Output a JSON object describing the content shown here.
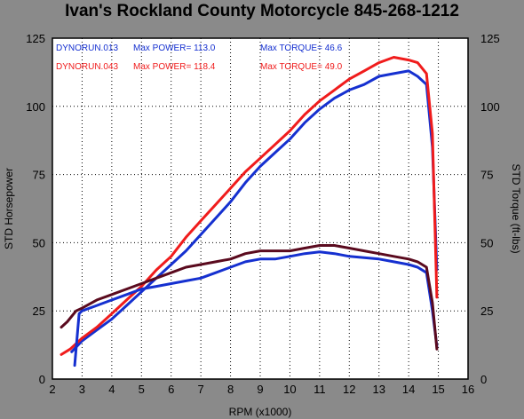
{
  "chart_data": {
    "type": "line",
    "title": "Ivan's Rockland County Motorcycle  845-268-1212",
    "xlabel": "RPM (x1000)",
    "ylabel_left": "STD Horsepower",
    "ylabel_right": "STD Torque (ft-lbs)",
    "xlim": [
      2,
      16
    ],
    "ylim": [
      0,
      125
    ],
    "x_ticks": [
      "2",
      "3",
      "4",
      "5",
      "6",
      "7",
      "8",
      "9",
      "10",
      "11",
      "12",
      "13",
      "14",
      "15",
      "16"
    ],
    "y_ticks": [
      "0",
      "25",
      "50",
      "75",
      "100",
      "125"
    ],
    "grid": true,
    "colors": {
      "blue": "#1530d0",
      "red": "#f01c1c",
      "maroon": "#5a0a1e",
      "plot_bg": "#ffffff",
      "page_bg": "#8a8a8a"
    },
    "legend": [
      {
        "run": "DYNORUN.013",
        "power": "Max POWER= 113.0",
        "torque": "Max TORQUE= 46.6",
        "color": "#1530d0"
      },
      {
        "run": "DYNORUN.043",
        "power": "Max POWER= 118.4",
        "torque": "Max TORQUE= 49.0",
        "color": "#f01c1c"
      }
    ],
    "series": [
      {
        "type": "power",
        "color": "#1530d0",
        "x": [
          2.65,
          3.0,
          3.5,
          4.0,
          4.5,
          5.0,
          5.5,
          6.0,
          6.5,
          7.0,
          7.5,
          8.0,
          8.5,
          9.0,
          9.5,
          10.0,
          10.5,
          11.0,
          11.5,
          12.0,
          12.5,
          13.0,
          13.5,
          14.0,
          14.3,
          14.6,
          14.8,
          14.95
        ],
        "values": [
          10,
          14,
          18,
          22,
          27,
          32,
          37,
          42,
          47,
          53,
          59,
          65,
          72,
          78,
          83,
          88,
          94,
          99,
          103,
          106,
          108,
          111,
          112,
          113,
          111,
          108,
          85,
          40
        ]
      },
      {
        "type": "power",
        "color": "#f01c1c",
        "x": [
          2.3,
          2.6,
          3.0,
          3.5,
          4.0,
          4.5,
          5.0,
          5.5,
          6.0,
          6.5,
          7.0,
          7.5,
          8.0,
          8.5,
          9.0,
          9.5,
          10.0,
          10.5,
          11.0,
          11.5,
          12.0,
          12.5,
          13.0,
          13.5,
          14.0,
          14.3,
          14.6,
          14.8,
          14.95
        ],
        "values": [
          9,
          11,
          15,
          19,
          24,
          29,
          34,
          40,
          45,
          52,
          58,
          64,
          70,
          76,
          81,
          86,
          91,
          97,
          102,
          106,
          110,
          113,
          116,
          118,
          117,
          116,
          112,
          90,
          30
        ]
      },
      {
        "type": "torque",
        "color": "#1530d0",
        "x": [
          2.75,
          2.9,
          3.0,
          3.5,
          4.0,
          4.5,
          5.0,
          5.5,
          6.0,
          6.5,
          7.0,
          7.5,
          8.0,
          8.5,
          9.0,
          9.5,
          10.0,
          10.5,
          11.0,
          11.5,
          12.0,
          12.5,
          13.0,
          13.5,
          14.0,
          14.3,
          14.6,
          14.8,
          14.95
        ],
        "values": [
          5,
          24,
          25,
          27,
          29,
          31,
          33,
          34,
          35,
          36,
          37,
          39,
          41,
          43,
          44,
          44,
          45,
          46,
          46.6,
          46,
          45,
          44.5,
          44,
          43,
          42,
          41,
          39,
          25,
          12
        ]
      },
      {
        "type": "torque",
        "color": "#5a0a1e",
        "x": [
          2.3,
          2.5,
          2.8,
          3.0,
          3.5,
          4.0,
          4.5,
          5.0,
          5.5,
          6.0,
          6.5,
          7.0,
          7.5,
          8.0,
          8.5,
          9.0,
          9.5,
          10.0,
          10.5,
          11.0,
          11.5,
          12.0,
          12.5,
          13.0,
          13.5,
          14.0,
          14.3,
          14.6,
          14.8,
          14.95
        ],
        "values": [
          19,
          21,
          25,
          26,
          29,
          31,
          33,
          35,
          37,
          39,
          41,
          42,
          43,
          44,
          46,
          47,
          47,
          47,
          48,
          49,
          49,
          48,
          47,
          46,
          45,
          44,
          43,
          41,
          28,
          11
        ]
      }
    ]
  }
}
